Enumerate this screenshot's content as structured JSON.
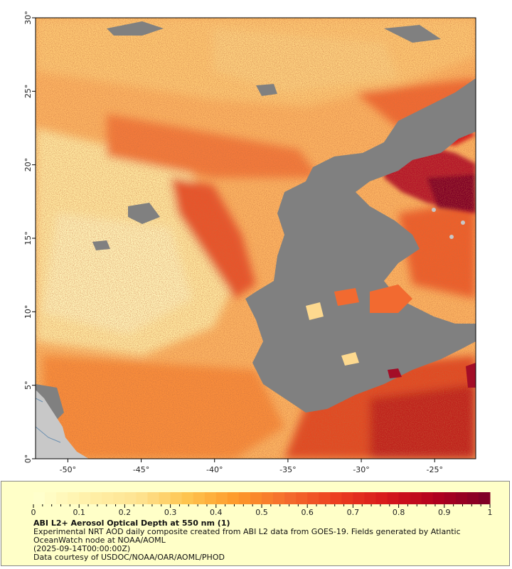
{
  "map": {
    "x_ticks": [
      "-50°",
      "-45°",
      "-40°",
      "-35°",
      "-30°",
      "-25°"
    ],
    "x_tick_values": [
      -50,
      -45,
      -40,
      -35,
      -30,
      -25
    ],
    "y_ticks": [
      "0°",
      "5°",
      "10°",
      "15°",
      "20°",
      "25°",
      "30°"
    ],
    "y_tick_values": [
      0,
      5,
      10,
      15,
      20,
      25,
      30
    ],
    "lon_range": [
      -52.2,
      -22.2
    ],
    "lat_range": [
      0,
      30
    ],
    "colors": {
      "no_data": "#808080",
      "land": "#c8c8c8",
      "coast_line": "#6a8fb0",
      "frame": "#000000"
    }
  },
  "legend": {
    "tick_labels": [
      "0",
      "0.1",
      "0.2",
      "0.3",
      "0.4",
      "0.5",
      "0.6",
      "0.7",
      "0.8",
      "0.9",
      "1"
    ],
    "tick_values": [
      0,
      0.1,
      0.2,
      0.3,
      0.4,
      0.5,
      0.6,
      0.7,
      0.8,
      0.9,
      1
    ],
    "range": [
      0,
      1
    ],
    "colormap": [
      "#ffffcc",
      "#fff0a8",
      "#fee391",
      "#fec44f",
      "#fe9929",
      "#f46d2e",
      "#ec3f1f",
      "#d7191c",
      "#b2001d",
      "#800026"
    ],
    "background": "#ffffc8"
  },
  "caption": {
    "title": "ABI L2+ Aerosol Optical Depth at 550 nm (1)",
    "line1": "Experimental NRT AOD daily composite created from ABI L2 data from GOES-19. Fields generated by Atlantic OceanWatch node at NOAA/AOML",
    "line2": "(2025-09-14T00:00:00Z)",
    "line3": "Data courtesy of USDOC/NOAA/OAR/AOML/PHOD"
  }
}
